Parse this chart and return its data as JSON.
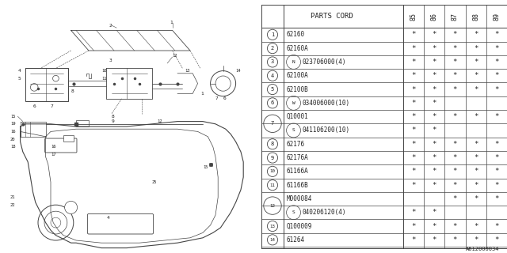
{
  "title": "PARTS CORD",
  "year_cols": [
    "85",
    "86",
    "87",
    "88",
    "89"
  ],
  "parts": [
    {
      "num": "1",
      "code": "62160",
      "marks": [
        1,
        1,
        1,
        1,
        1
      ],
      "group": 1,
      "prefix": ""
    },
    {
      "num": "2",
      "code": "62160A",
      "marks": [
        1,
        1,
        1,
        1,
        1
      ],
      "group": 1,
      "prefix": ""
    },
    {
      "num": "3",
      "code": "023706000(4)",
      "marks": [
        1,
        1,
        1,
        1,
        1
      ],
      "group": 1,
      "prefix": "N"
    },
    {
      "num": "4",
      "code": "62100A",
      "marks": [
        1,
        1,
        1,
        1,
        1
      ],
      "group": 1,
      "prefix": ""
    },
    {
      "num": "5",
      "code": "62100B",
      "marks": [
        1,
        1,
        1,
        1,
        1
      ],
      "group": 1,
      "prefix": ""
    },
    {
      "num": "6",
      "code": "034006000(10)",
      "marks": [
        1,
        1,
        0,
        0,
        0
      ],
      "group": 1,
      "prefix": "W"
    },
    {
      "num": "7",
      "code": "Q10001",
      "marks": [
        1,
        1,
        1,
        1,
        1
      ],
      "group": 2,
      "prefix": ""
    },
    {
      "num": "7",
      "code": "041106200(10)",
      "marks": [
        1,
        1,
        0,
        0,
        0
      ],
      "group": 2,
      "prefix": "S"
    },
    {
      "num": "8",
      "code": "62176",
      "marks": [
        1,
        1,
        1,
        1,
        1
      ],
      "group": 1,
      "prefix": ""
    },
    {
      "num": "9",
      "code": "62176A",
      "marks": [
        1,
        1,
        1,
        1,
        1
      ],
      "group": 1,
      "prefix": ""
    },
    {
      "num": "10",
      "code": "61166A",
      "marks": [
        1,
        1,
        1,
        1,
        1
      ],
      "group": 1,
      "prefix": ""
    },
    {
      "num": "11",
      "code": "61166B",
      "marks": [
        1,
        1,
        1,
        1,
        1
      ],
      "group": 1,
      "prefix": ""
    },
    {
      "num": "12",
      "code": "M000084",
      "marks": [
        0,
        0,
        1,
        1,
        1
      ],
      "group": 2,
      "prefix": ""
    },
    {
      "num": "12",
      "code": "040206120(4)",
      "marks": [
        1,
        1,
        0,
        0,
        0
      ],
      "group": 2,
      "prefix": "S"
    },
    {
      "num": "13",
      "code": "Q100009",
      "marks": [
        1,
        1,
        1,
        1,
        1
      ],
      "group": 1,
      "prefix": ""
    },
    {
      "num": "14",
      "code": "61264",
      "marks": [
        1,
        1,
        1,
        1,
        1
      ],
      "group": 1,
      "prefix": ""
    }
  ],
  "bg_color": "#ffffff",
  "line_color": "#444444",
  "text_color": "#222222",
  "diagram_label": "A612000034"
}
